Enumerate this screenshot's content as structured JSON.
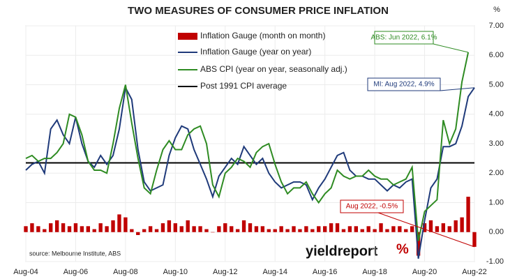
{
  "chart_data": {
    "type": "combo",
    "title": "TWO MEASURES OF CONSUMER PRICE INFLATION",
    "y_unit": "%",
    "source": "source: Melbourne Institute, ABS",
    "logo": "yieldreport",
    "logo_symbol": "%",
    "categories": [
      "Aug-04",
      null,
      null,
      null,
      null,
      null,
      null,
      null,
      "Aug-06",
      null,
      null,
      null,
      null,
      null,
      null,
      null,
      "Aug-08",
      null,
      null,
      null,
      null,
      null,
      null,
      null,
      "Aug-10",
      null,
      null,
      null,
      null,
      null,
      null,
      null,
      "Aug-12",
      null,
      null,
      null,
      null,
      null,
      null,
      null,
      "Aug-14",
      null,
      null,
      null,
      null,
      null,
      null,
      null,
      "Aug-16",
      null,
      null,
      null,
      null,
      null,
      null,
      null,
      "Aug-18",
      null,
      null,
      null,
      null,
      null,
      null,
      null,
      "Aug-20",
      null,
      null,
      null,
      null,
      null,
      null,
      null,
      "Aug-22"
    ],
    "series": [
      {
        "name": "Inflation Gauge (month on month)",
        "kind": "bar",
        "color": "#c00000",
        "values": [
          0.2,
          0.3,
          0.2,
          0.1,
          0.3,
          0.4,
          0.3,
          0.2,
          0.3,
          0.2,
          0.2,
          0.1,
          0.3,
          0.2,
          0.4,
          0.6,
          0.5,
          0.1,
          -0.1,
          0.1,
          0.2,
          0.1,
          0.3,
          0.4,
          0.3,
          0.2,
          0.4,
          0.2,
          0.2,
          0.1,
          0.0,
          0.2,
          0.3,
          0.2,
          0.1,
          0.4,
          0.3,
          0.2,
          0.2,
          0.1,
          0.1,
          0.2,
          0.1,
          0.2,
          0.1,
          0.2,
          0.1,
          0.2,
          0.2,
          0.3,
          0.3,
          0.1,
          0.2,
          0.2,
          0.1,
          0.2,
          0.1,
          0.3,
          0.1,
          0.2,
          0.2,
          0.1,
          0.2,
          -0.8,
          0.3,
          0.4,
          0.2,
          0.3,
          0.2,
          0.4,
          0.5,
          1.2,
          -0.5
        ]
      },
      {
        "name": "Inflation Gauge (year on year)",
        "kind": "line",
        "color": "#1f3a7a",
        "values": [
          2.1,
          2.3,
          2.4,
          2.0,
          3.5,
          3.8,
          3.3,
          3.0,
          3.9,
          3.0,
          2.4,
          2.2,
          2.6,
          2.3,
          2.6,
          3.5,
          4.9,
          4.5,
          2.8,
          1.7,
          1.4,
          1.5,
          1.6,
          2.6,
          3.2,
          3.6,
          3.5,
          2.8,
          2.3,
          1.8,
          1.2,
          1.9,
          2.2,
          2.5,
          2.3,
          2.9,
          2.6,
          2.3,
          2.5,
          2.0,
          1.7,
          1.5,
          1.6,
          1.7,
          1.7,
          1.6,
          1.1,
          1.5,
          1.8,
          2.2,
          2.6,
          2.7,
          2.1,
          1.9,
          1.9,
          1.8,
          1.8,
          1.6,
          1.4,
          1.6,
          1.5,
          1.7,
          1.8,
          -0.9,
          0.4,
          1.5,
          1.8,
          2.9,
          2.9,
          3.0,
          3.6,
          4.6,
          4.9
        ]
      },
      {
        "name": "ABS CPI (year on year, seasonally adj.)",
        "kind": "line",
        "color": "#2e8b22",
        "values": [
          2.5,
          2.6,
          2.4,
          2.5,
          2.5,
          2.7,
          3.0,
          4.0,
          3.9,
          3.3,
          2.4,
          2.1,
          2.1,
          2.0,
          3.0,
          4.2,
          5.0,
          3.7,
          2.5,
          1.5,
          1.3,
          2.1,
          2.8,
          3.1,
          2.8,
          2.8,
          3.3,
          3.5,
          3.6,
          3.0,
          1.6,
          1.2,
          2.0,
          2.2,
          2.5,
          2.4,
          2.2,
          2.7,
          2.9,
          3.0,
          2.3,
          1.7,
          1.3,
          1.5,
          1.5,
          1.7,
          1.3,
          1.0,
          1.3,
          1.5,
          2.1,
          1.9,
          1.8,
          1.9,
          1.9,
          2.1,
          1.9,
          1.8,
          1.8,
          1.6,
          1.7,
          1.8,
          2.2,
          -0.3,
          0.7,
          0.9,
          1.1,
          3.8,
          3.0,
          3.5,
          5.1,
          6.1,
          null
        ]
      }
    ],
    "reference": {
      "name": "Post 1991 CPI average",
      "value": 2.35,
      "color": "#000000"
    },
    "annotations": [
      {
        "text": "ABS: Jun 2022, 6.1%",
        "color": "#2e8b22"
      },
      {
        "text": "MI: Aug 2022, 4.9%",
        "color": "#1f3a7a"
      },
      {
        "text": "Aug 2022, -0.5%",
        "color": "#c00000"
      }
    ],
    "ylim": [
      -1,
      7
    ],
    "yticks": [
      {
        "value": -1,
        "label": "-1.00"
      },
      {
        "value": 0,
        "label": "0.00"
      },
      {
        "value": 1,
        "label": "1.00"
      },
      {
        "value": 2,
        "label": "2.00"
      },
      {
        "value": 3,
        "label": "3.00"
      },
      {
        "value": 4,
        "label": "4.00"
      },
      {
        "value": 5,
        "label": "5.00"
      },
      {
        "value": 6,
        "label": "6.00"
      },
      {
        "value": 7,
        "label": "7.00"
      }
    ],
    "grid": true
  }
}
